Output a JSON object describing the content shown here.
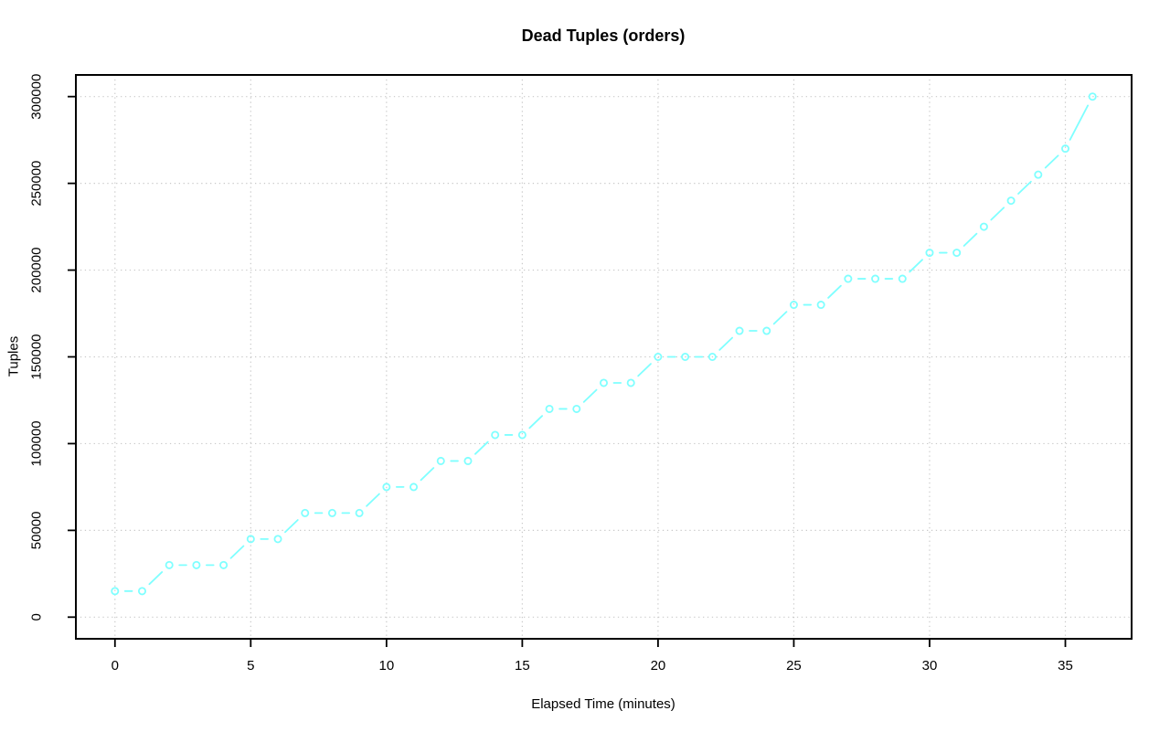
{
  "chart_data": {
    "type": "line",
    "title": "Dead Tuples (orders)",
    "xlabel": "Elapsed Time (minutes)",
    "ylabel": "Tuples",
    "xlim": [
      -1.44,
      37.44
    ],
    "ylim": [
      -12480,
      312480
    ],
    "xticks": [
      0,
      5,
      10,
      15,
      20,
      25,
      30,
      35
    ],
    "yticks": [
      0,
      50000,
      100000,
      150000,
      200000,
      250000,
      300000
    ],
    "grid": true,
    "grid_style": "dotted",
    "legend": false,
    "colors": {
      "series": "#7FFFFF",
      "grid": "#C9C9C9",
      "axis": "#000000",
      "text": "#000000",
      "background": "#FFFFFF"
    },
    "series": [
      {
        "name": "dead tuples (orders)",
        "marker": "open-circle",
        "line_type": "both-points-and-segments",
        "x": [
          0,
          1,
          2,
          3,
          4,
          5,
          6,
          7,
          8,
          9,
          10,
          11,
          12,
          13,
          14,
          15,
          16,
          17,
          18,
          19,
          20,
          21,
          22,
          23,
          24,
          25,
          26,
          27,
          28,
          29,
          30,
          31,
          32,
          33,
          34,
          35,
          36
        ],
        "y": [
          15000,
          15000,
          30000,
          30000,
          30000,
          45000,
          45000,
          60000,
          60000,
          60000,
          75000,
          75000,
          90000,
          90000,
          105000,
          105000,
          120000,
          120000,
          135000,
          135000,
          150000,
          150000,
          150000,
          165000,
          165000,
          180000,
          180000,
          195000,
          195000,
          195000,
          210000,
          210000,
          225000,
          240000,
          255000,
          270000,
          300000
        ]
      }
    ]
  }
}
